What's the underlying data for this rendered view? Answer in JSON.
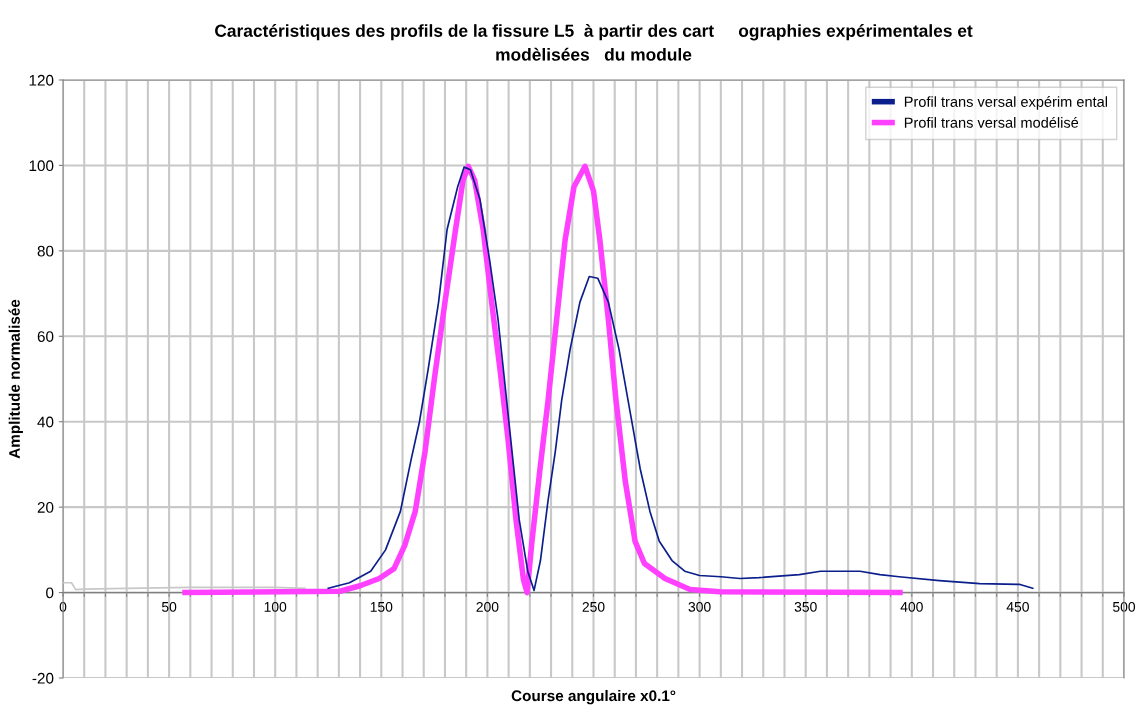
{
  "chart_data": {
    "type": "line",
    "title": "Caractéristiques des profils de la fissure L5  à partir des cart     ographies expérimentales et\nmodèlisées   du module",
    "xlabel": "Course angulaire x0.1°",
    "ylabel": "Amplitude normalisée",
    "xlim": [
      0,
      500
    ],
    "ylim": [
      -20,
      120
    ],
    "xticks": [
      0,
      {
        "value": 10,
        "label": null
      },
      {
        "value": 20,
        "label": null
      },
      {
        "value": 30,
        "label": null
      },
      {
        "value": 40,
        "label": null
      },
      50,
      {
        "value": 60,
        "label": null
      },
      {
        "value": 70,
        "label": null
      },
      {
        "value": 80,
        "label": null
      },
      {
        "value": 90,
        "label": null
      },
      100,
      {
        "value": 110,
        "label": null
      },
      {
        "value": 120,
        "label": null
      },
      {
        "value": 130,
        "label": null
      },
      {
        "value": 140,
        "label": null
      },
      150,
      {
        "value": 160,
        "label": null
      },
      {
        "value": 170,
        "label": null
      },
      {
        "value": 180,
        "label": null
      },
      {
        "value": 190,
        "label": null
      },
      200,
      {
        "value": 210,
        "label": null
      },
      {
        "value": 220,
        "label": null
      },
      {
        "value": 230,
        "label": null
      },
      {
        "value": 240,
        "label": null
      },
      250,
      {
        "value": 260,
        "label": null
      },
      {
        "value": 270,
        "label": null
      },
      {
        "value": 280,
        "label": null
      },
      {
        "value": 290,
        "label": null
      },
      300,
      {
        "value": 310,
        "label": null
      },
      {
        "value": 320,
        "label": null
      },
      {
        "value": 330,
        "label": null
      },
      {
        "value": 340,
        "label": null
      },
      350,
      {
        "value": 360,
        "label": null
      },
      {
        "value": 370,
        "label": null
      },
      {
        "value": 380,
        "label": null
      },
      {
        "value": 390,
        "label": null
      },
      400,
      {
        "value": 410,
        "label": null
      },
      {
        "value": 420,
        "label": null
      },
      {
        "value": 430,
        "label": null
      },
      {
        "value": 440,
        "label": null
      },
      450,
      {
        "value": 460,
        "label": null
      },
      {
        "value": 470,
        "label": null
      },
      {
        "value": 480,
        "label": null
      },
      {
        "value": 490,
        "label": null
      },
      500
    ],
    "yticks": [
      -20,
      0,
      20,
      40,
      60,
      80,
      100,
      120
    ],
    "grid": true,
    "legend": "top right",
    "marker": "none",
    "line_style": "solid",
    "series": [
      {
        "name": "Profil trans versal expérim ental",
        "color": "#0a1e8c",
        "x": [
          125,
          135,
          145,
          152,
          159,
          164,
          168,
          172,
          177,
          181,
          186,
          189,
          192,
          196.5,
          201,
          205,
          208,
          211.6,
          215,
          219,
          222,
          225,
          228.6,
          232,
          235,
          239,
          243.6,
          248,
          252,
          257,
          262,
          267,
          272,
          276.6,
          281,
          287,
          293,
          300,
          310,
          319,
          328,
          347,
          357,
          375.6,
          385,
          394,
          413,
          432,
          451,
          457
        ],
        "values": [
          1,
          2.3,
          5,
          10,
          19,
          31,
          40,
          52,
          68,
          85,
          95,
          99.6,
          99,
          92,
          78,
          64,
          50,
          33,
          17,
          5,
          0.5,
          7.5,
          21.6,
          33,
          45,
          57,
          68,
          74,
          73.6,
          68,
          57,
          43,
          29,
          19,
          12,
          7.5,
          5,
          4,
          3.7,
          3.3,
          3.5,
          4.2,
          5,
          5,
          4.2,
          3.7,
          2.8,
          2.1,
          1.9,
          1
        ]
      },
      {
        "name": "Profil trans versal modélisé",
        "color": "#ff40ff",
        "x": [
          57.5,
          130.5,
          140,
          149,
          156,
          161,
          166,
          170.6,
          175,
          180,
          185,
          188.5,
          191,
          194,
          198,
          202,
          206,
          209.7,
          213.5,
          217,
          218.7,
          221,
          224.8,
          228.6,
          232,
          236.6,
          240.8,
          246,
          250,
          253,
          257,
          260.6,
          265,
          269.6,
          274,
          283.7,
          295.5,
          309.6,
          394.4
        ],
        "values": [
          0,
          0.3,
          1.6,
          3.3,
          5.6,
          11,
          19,
          33,
          50,
          68,
          85,
          96.5,
          99.8,
          96.5,
          85,
          68,
          52,
          36,
          17,
          3,
          0,
          12,
          29,
          45,
          61,
          82.5,
          95,
          99.8,
          94,
          82.5,
          64,
          45,
          26,
          12,
          6.8,
          3.3,
          0.7,
          0.2,
          0
        ]
      },
      {
        "color": "#c8c8c8",
        "x": [
          0,
          4,
          6,
          10,
          30,
          60,
          100,
          114
        ],
        "values": [
          2.3,
          2.3,
          0.7,
          0.8,
          1,
          1.2,
          1.2,
          1
        ]
      }
    ]
  }
}
